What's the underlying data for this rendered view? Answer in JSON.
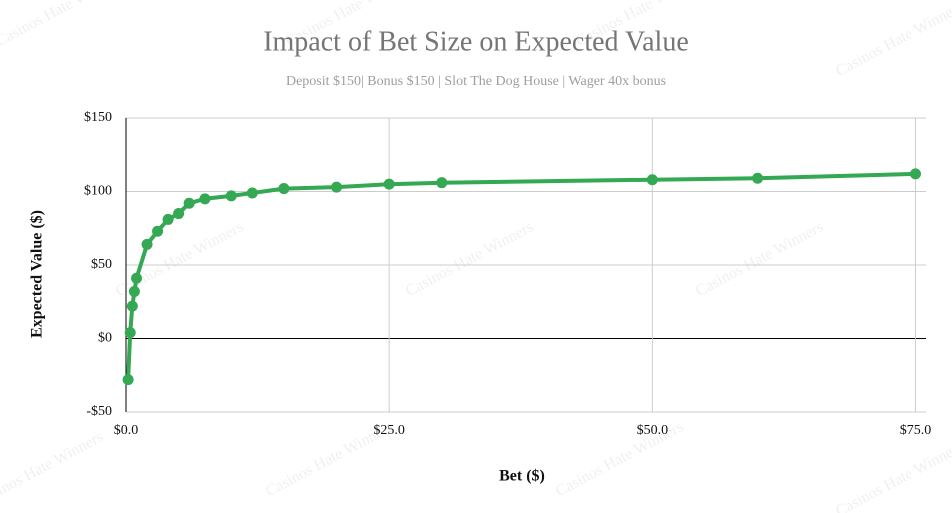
{
  "chart_data": {
    "type": "line",
    "title": "Impact of Bet Size on Expected Value",
    "subtitle": "Deposit $150| Bonus $150 | Slot The Dog House | Wager 40x bonus",
    "x_label": "Bet ($)",
    "y_label": "Expected Value ($)",
    "watermark": "Casinos Hate Winners",
    "x": [
      0.2,
      0.4,
      0.6,
      0.8,
      1.0,
      2.0,
      3.0,
      4.0,
      5.0,
      6.0,
      7.5,
      10,
      12,
      15,
      20,
      25,
      30,
      50,
      60,
      75
    ],
    "series": [
      {
        "name": "Expected Value",
        "color": "#34a853",
        "values": [
          -28,
          4,
          22,
          32,
          41,
          64,
          73,
          81,
          85,
          92,
          95,
          97,
          99,
          102,
          103,
          105,
          106,
          108,
          109,
          112
        ]
      }
    ],
    "xlim": [
      0,
      76
    ],
    "ylim": [
      -50,
      150
    ],
    "xticks": [
      {
        "value": 0,
        "label": "$0.0"
      },
      {
        "value": 25,
        "label": "$25.0"
      },
      {
        "value": 50,
        "label": "$50.0"
      },
      {
        "value": 75,
        "label": "$75.0"
      }
    ],
    "yticks": [
      {
        "value": -50,
        "label": "-$50"
      },
      {
        "value": 0,
        "label": "$0"
      },
      {
        "value": 50,
        "label": "$50"
      },
      {
        "value": 100,
        "label": "$100"
      },
      {
        "value": 150,
        "label": "$150"
      }
    ],
    "grid": true
  }
}
